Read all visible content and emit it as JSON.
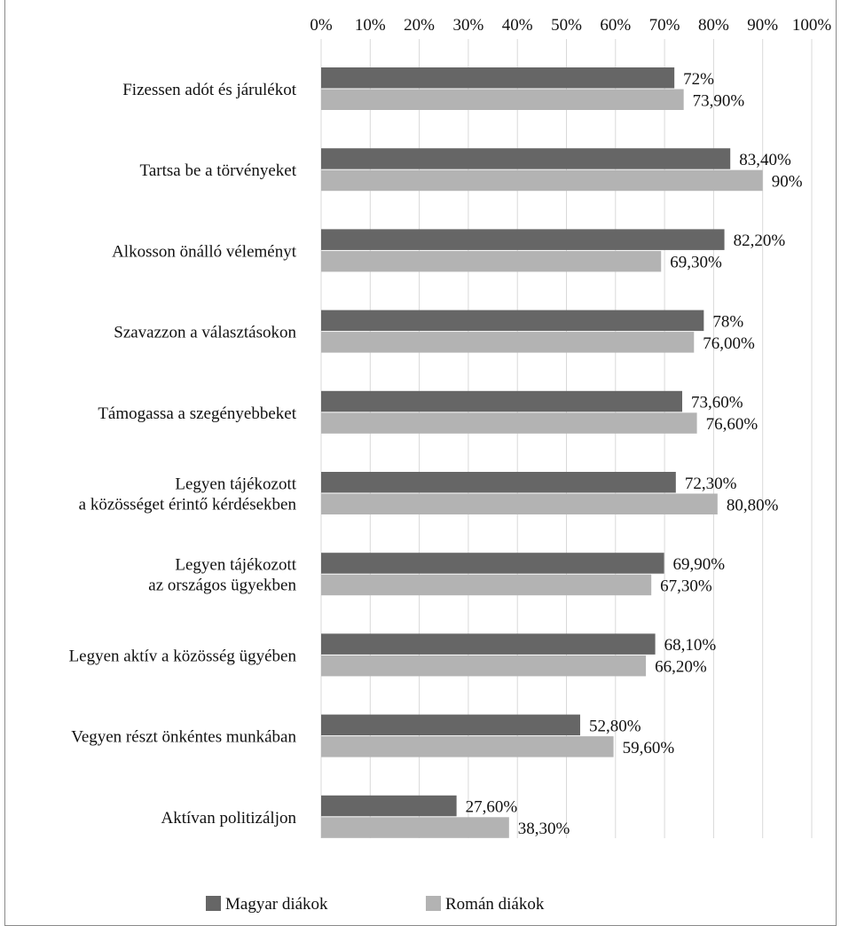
{
  "chart_data": {
    "type": "bar",
    "orientation": "horizontal",
    "categories": [
      [
        "Fizessen adót és járulékot"
      ],
      [
        "Tartsa be a törvényeket"
      ],
      [
        "Alkosson önálló véleményt"
      ],
      [
        "Szavazzon a választásokon"
      ],
      [
        "Támogassa a szegényebbeket"
      ],
      [
        "Legyen tájékozott",
        "a közösséget érintő kérdésekben"
      ],
      [
        "Legyen tájékozott",
        "az országos ügyekben"
      ],
      [
        "Legyen aktív a közösség ügyében"
      ],
      [
        "Vegyen részt önkéntes munkában"
      ],
      [
        "Aktívan politizáljon"
      ]
    ],
    "series": [
      {
        "name": "Magyar diákok",
        "color": "#666666",
        "values": [
          72,
          83.4,
          82.2,
          78,
          73.6,
          72.3,
          69.9,
          68.1,
          52.8,
          27.6
        ],
        "labels": [
          "72%",
          "83,40%",
          "82,20%",
          "78%",
          "73,60%",
          "72,30%",
          "69,90%",
          "68,10%",
          "52,80%",
          "27,60%"
        ]
      },
      {
        "name": "Román diákok",
        "color": "#b3b3b3",
        "values": [
          73.9,
          90,
          69.3,
          76,
          76.6,
          80.8,
          67.3,
          66.2,
          59.6,
          38.3
        ],
        "labels": [
          "73,90%",
          "90%",
          "69,30%",
          "76,00%",
          "76,60%",
          "80,80%",
          "67,30%",
          "66,20%",
          "59,60%",
          "38,30%"
        ]
      }
    ],
    "xlim": [
      0,
      100
    ],
    "xticks": [
      "0%",
      "10%",
      "20%",
      "30%",
      "40%",
      "50%",
      "60%",
      "70%",
      "80%",
      "90%",
      "100%"
    ],
    "x_axis_position": "top",
    "grid": "vertical",
    "legend_position": "bottom"
  }
}
